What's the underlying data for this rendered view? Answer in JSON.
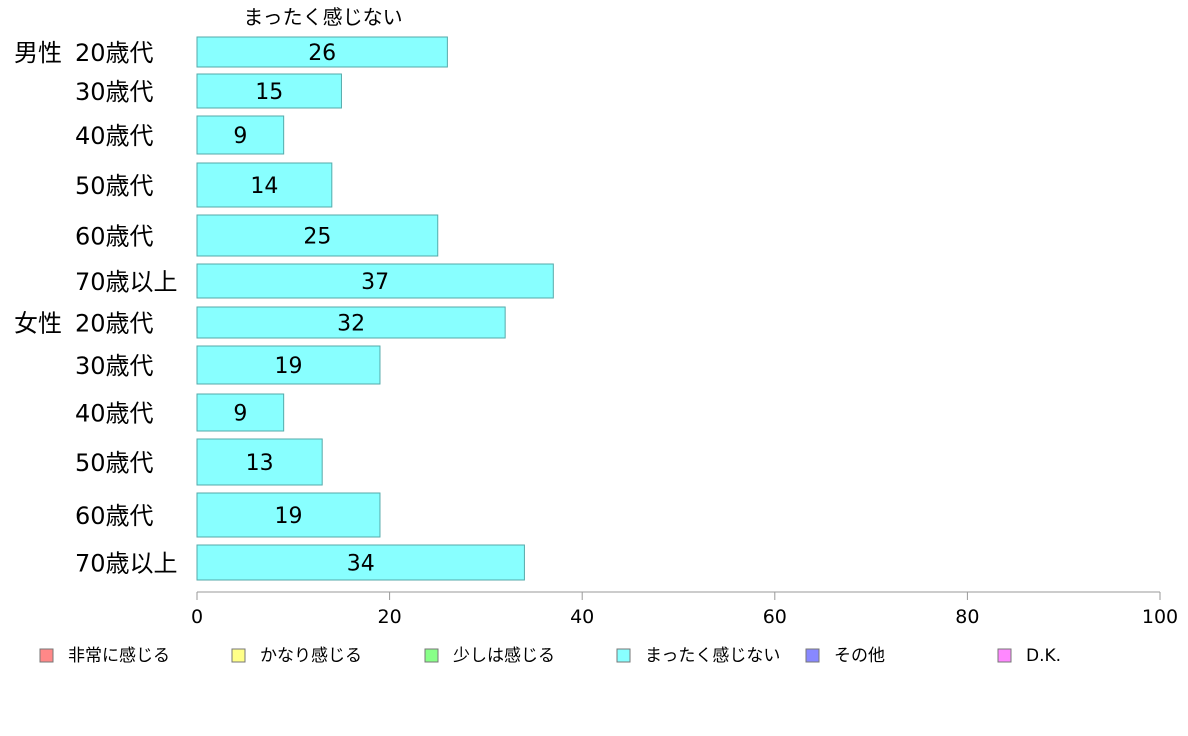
{
  "chart_data": {
    "type": "bar",
    "orientation": "horizontal",
    "series_title": "まったく感じない",
    "groups": [
      {
        "label": "男性",
        "rows": [
          {
            "label": "20歳代",
            "value": 26
          },
          {
            "label": "30歳代",
            "value": 15
          },
          {
            "label": "40歳代",
            "value": 9
          },
          {
            "label": "50歳代",
            "value": 14
          },
          {
            "label": "60歳代",
            "value": 25
          },
          {
            "label": "70歳以上",
            "value": 37
          }
        ]
      },
      {
        "label": "女性",
        "rows": [
          {
            "label": "20歳代",
            "value": 32
          },
          {
            "label": "30歳代",
            "value": 19
          },
          {
            "label": "40歳代",
            "value": 9
          },
          {
            "label": "50歳代",
            "value": 13
          },
          {
            "label": "60歳代",
            "value": 19
          },
          {
            "label": "70歳以上",
            "value": 34
          }
        ]
      }
    ],
    "bar_color": "#88ffff",
    "bar_stroke": "#55aaaa",
    "xlim": [
      0,
      100
    ],
    "xticks": [
      0,
      20,
      40,
      60,
      80,
      100
    ],
    "legend": {
      "position": "bottom",
      "items": [
        {
          "label": "非常に感じる",
          "color": "#ff8888"
        },
        {
          "label": "かなり感じる",
          "color": "#ffff88"
        },
        {
          "label": "少しは感じる",
          "color": "#88ff88"
        },
        {
          "label": "まったく感じない",
          "color": "#88ffff"
        },
        {
          "label": "その他",
          "color": "#8888ff"
        },
        {
          "label": "D.K.",
          "color": "#ff88ff"
        }
      ]
    }
  }
}
